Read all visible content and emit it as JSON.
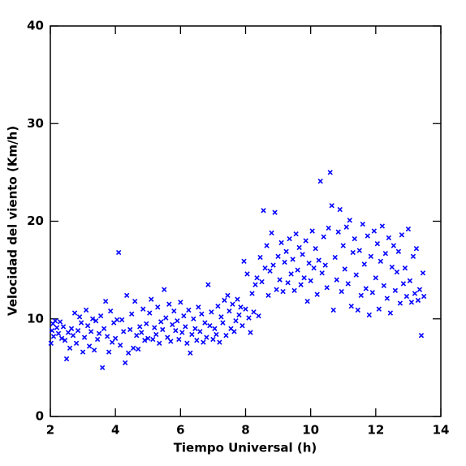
{
  "chart_data": {
    "type": "scatter",
    "x_label": "Tiempo Universal (h)",
    "y_label": "Velocidad del viento (Km/h)",
    "xlim": [
      2,
      14
    ],
    "xticks": [
      2,
      4,
      6,
      8,
      10,
      12,
      14
    ],
    "ylim": [
      0,
      40
    ],
    "yticks": [
      0,
      10,
      20,
      30,
      40
    ],
    "color": "#0000ff",
    "x": [
      2.02,
      2.05,
      2.08,
      2.1,
      2.15,
      2.2,
      2.25,
      2.3,
      2.35,
      2.4,
      2.45,
      2.5,
      2.55,
      2.6,
      2.65,
      2.7,
      2.75,
      2.8,
      2.85,
      2.9,
      2.95,
      3.0,
      3.05,
      3.1,
      3.15,
      3.2,
      3.25,
      3.3,
      3.35,
      3.4,
      3.45,
      3.5,
      3.55,
      3.6,
      3.65,
      3.7,
      3.75,
      3.8,
      3.85,
      3.9,
      3.95,
      4.0,
      4.05,
      4.1,
      4.15,
      4.2,
      4.25,
      4.3,
      4.35,
      4.4,
      4.45,
      4.5,
      4.55,
      4.6,
      4.65,
      4.7,
      4.75,
      4.8,
      4.85,
      4.9,
      4.95,
      5.0,
      5.05,
      5.1,
      5.15,
      5.2,
      5.25,
      5.3,
      5.35,
      5.4,
      5.45,
      5.5,
      5.55,
      5.6,
      5.65,
      5.7,
      5.75,
      5.8,
      5.85,
      5.9,
      5.95,
      6.0,
      6.05,
      6.1,
      6.15,
      6.2,
      6.25,
      6.3,
      6.35,
      6.4,
      6.45,
      6.5,
      6.55,
      6.6,
      6.65,
      6.7,
      6.75,
      6.8,
      6.85,
      6.9,
      6.95,
      7.0,
      7.05,
      7.1,
      7.15,
      7.2,
      7.25,
      7.3,
      7.35,
      7.4,
      7.45,
      7.5,
      7.55,
      7.6,
      7.65,
      7.7,
      7.75,
      7.8,
      7.85,
      7.9,
      7.95,
      8.0,
      8.05,
      8.1,
      8.15,
      8.2,
      8.25,
      8.3,
      8.35,
      8.4,
      8.45,
      8.5,
      8.55,
      8.6,
      8.65,
      8.7,
      8.75,
      8.8,
      8.85,
      8.9,
      8.95,
      9.0,
      9.05,
      9.1,
      9.15,
      9.2,
      9.25,
      9.3,
      9.35,
      9.4,
      9.45,
      9.5,
      9.55,
      9.6,
      9.65,
      9.7,
      9.75,
      9.8,
      9.85,
      9.9,
      9.95,
      10.0,
      10.05,
      10.1,
      10.15,
      10.2,
      10.25,
      10.3,
      10.35,
      10.4,
      10.45,
      10.5,
      10.55,
      10.6,
      10.65,
      10.7,
      10.75,
      10.8,
      10.85,
      10.9,
      10.95,
      11.0,
      11.05,
      11.1,
      11.15,
      11.2,
      11.25,
      11.3,
      11.35,
      11.4,
      11.45,
      11.5,
      11.55,
      11.6,
      11.65,
      11.7,
      11.75,
      11.8,
      11.85,
      11.9,
      11.95,
      12.0,
      12.05,
      12.1,
      12.15,
      12.2,
      12.25,
      12.3,
      12.35,
      12.4,
      12.45,
      12.5,
      12.55,
      12.6,
      12.65,
      12.7,
      12.75,
      12.8,
      12.85,
      12.9,
      12.95,
      13.0,
      13.05,
      13.1,
      13.15,
      13.2,
      13.25,
      13.3,
      13.35,
      13.4,
      13.45,
      13.48
    ],
    "values": [
      7.5,
      8.8,
      9.5,
      8.2,
      9.8,
      9.1,
      8.5,
      9.7,
      8.0,
      9.2,
      7.8,
      5.9,
      8.6,
      7.0,
      9.0,
      8.3,
      10.6,
      7.5,
      8.8,
      10.2,
      9.6,
      6.6,
      8.1,
      10.9,
      9.3,
      7.2,
      8.7,
      10.0,
      6.8,
      9.8,
      7.9,
      8.5,
      10.3,
      5.0,
      9.0,
      11.8,
      8.2,
      6.6,
      10.8,
      7.6,
      9.6,
      8.0,
      9.9,
      16.8,
      7.3,
      9.9,
      8.7,
      5.5,
      12.4,
      6.5,
      8.9,
      10.5,
      7.0,
      11.8,
      8.3,
      6.9,
      9.2,
      8.6,
      11.0,
      7.8,
      9.5,
      8.0,
      10.6,
      12.0,
      7.9,
      9.1,
      8.4,
      11.2,
      7.5,
      9.7,
      8.9,
      13.0,
      10.1,
      8.1,
      11.5,
      7.7,
      9.4,
      10.8,
      8.8,
      9.8,
      7.9,
      11.7,
      8.6,
      10.3,
      9.2,
      7.5,
      10.9,
      6.5,
      8.4,
      10.0,
      9.0,
      7.8,
      11.2,
      8.7,
      10.5,
      7.6,
      9.6,
      8.1,
      13.5,
      9.3,
      10.7,
      7.9,
      9.0,
      8.4,
      11.3,
      7.6,
      10.2,
      9.6,
      11.9,
      8.3,
      12.4,
      10.8,
      9.0,
      11.5,
      8.7,
      9.8,
      12.0,
      10.4,
      11.2,
      9.3,
      15.9,
      11.0,
      14.6,
      10.1,
      8.6,
      12.6,
      10.7,
      13.5,
      14.2,
      10.3,
      16.3,
      13.8,
      21.1,
      15.2,
      17.5,
      12.4,
      14.9,
      18.8,
      15.5,
      20.9,
      13.0,
      16.4,
      14.0,
      17.8,
      12.8,
      15.8,
      16.9,
      13.7,
      18.2,
      14.6,
      16.1,
      12.9,
      18.7,
      15.0,
      17.3,
      13.5,
      16.6,
      14.2,
      18.0,
      11.8,
      15.7,
      13.9,
      19.0,
      15.2,
      17.2,
      12.5,
      16.0,
      24.1,
      14.7,
      18.4,
      15.5,
      13.2,
      19.3,
      25.0,
      21.6,
      10.9,
      16.3,
      14.0,
      18.9,
      21.2,
      12.8,
      17.5,
      15.1,
      19.4,
      13.6,
      20.1,
      11.3,
      16.8,
      18.2,
      14.5,
      10.9,
      17.0,
      12.4,
      19.7,
      15.6,
      13.1,
      18.5,
      10.4,
      16.4,
      12.7,
      19.0,
      14.2,
      17.7,
      11.0,
      15.9,
      19.5,
      13.4,
      16.7,
      12.1,
      18.3,
      10.6,
      15.3,
      17.5,
      12.9,
      14.8,
      16.9,
      11.6,
      18.6,
      13.6,
      15.2,
      12.3,
      19.2,
      13.9,
      11.7,
      16.4,
      12.6,
      17.2,
      11.9,
      13.0,
      8.3,
      14.7,
      12.3
    ]
  }
}
